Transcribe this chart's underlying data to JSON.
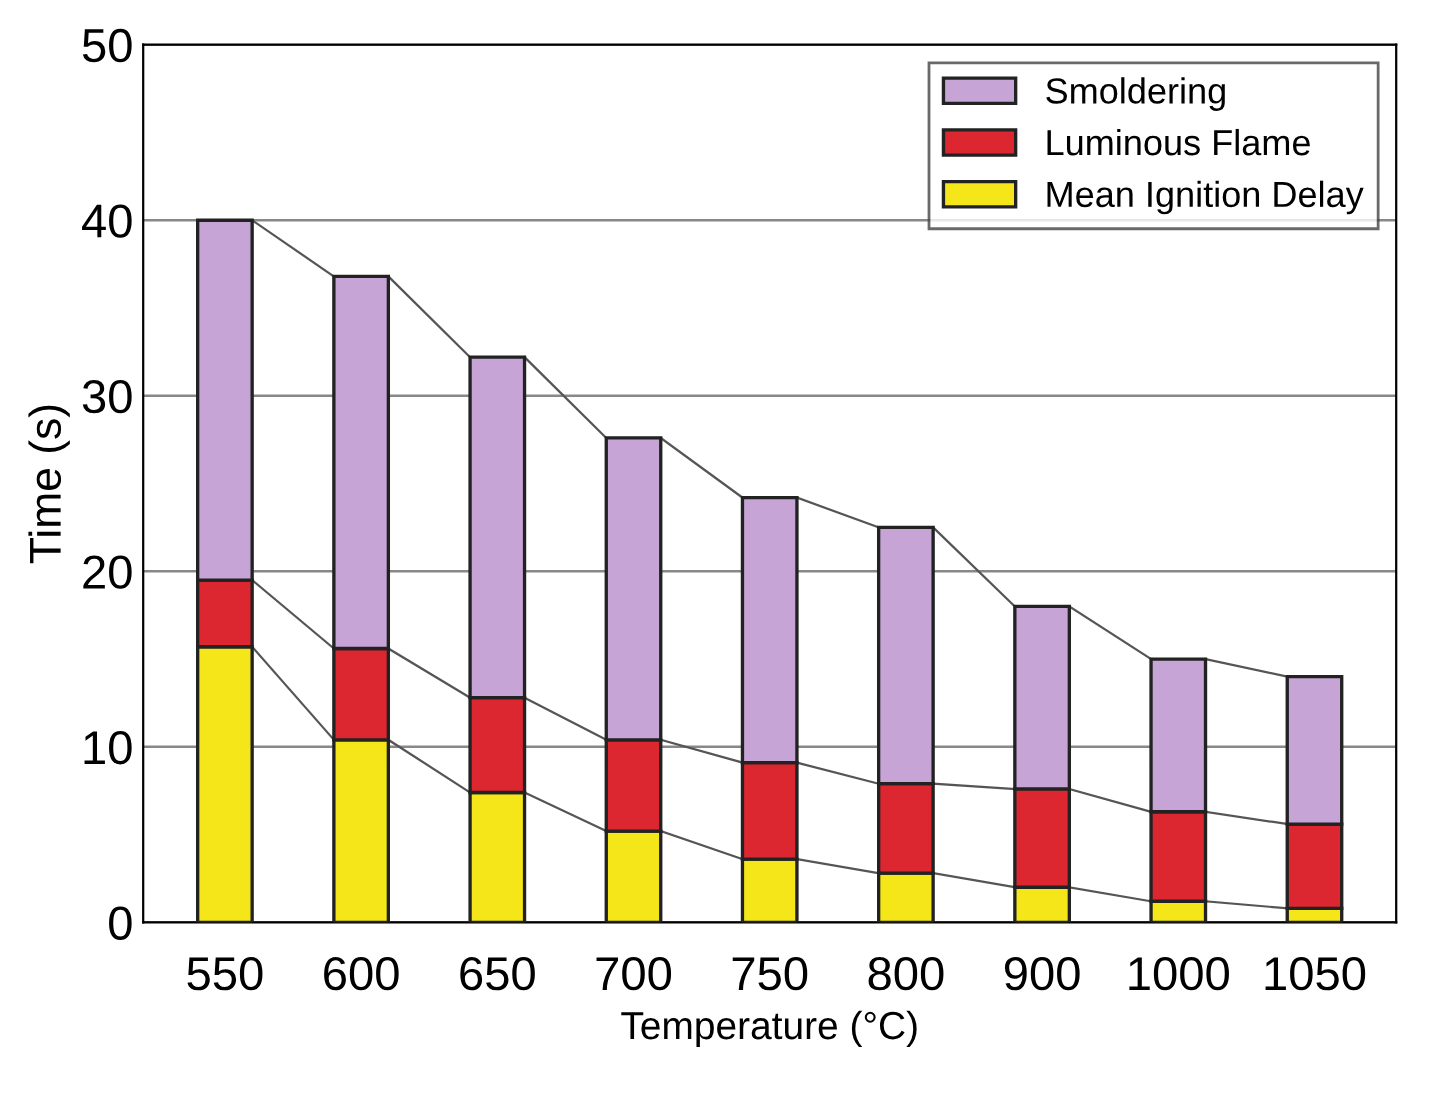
{
  "chart_data": {
    "type": "bar",
    "stacked": true,
    "categories": [
      "550",
      "600",
      "650",
      "700",
      "750",
      "800",
      "900",
      "1000",
      "1050"
    ],
    "series": [
      {
        "name": "Mean Ignition Delay",
        "color": "#f5e61a",
        "values": [
          15.7,
          10.4,
          7.4,
          5.2,
          3.6,
          2.8,
          2.0,
          1.2,
          0.8
        ]
      },
      {
        "name": "Luminous Flame",
        "color": "#dc2630",
        "values": [
          3.8,
          5.2,
          5.4,
          5.2,
          5.5,
          5.1,
          5.6,
          5.1,
          4.8
        ]
      },
      {
        "name": "Smoldering",
        "color": "#c7a4d6",
        "values": [
          20.5,
          21.2,
          19.4,
          17.2,
          15.1,
          14.6,
          10.4,
          8.7,
          8.4
        ]
      }
    ],
    "xlabel": "Temperature (°C)",
    "ylabel": "Time (s)",
    "ylim": [
      0,
      50
    ],
    "yticks": [
      0,
      10,
      20,
      30,
      40,
      50
    ],
    "grid": "y",
    "legend": "top right"
  }
}
